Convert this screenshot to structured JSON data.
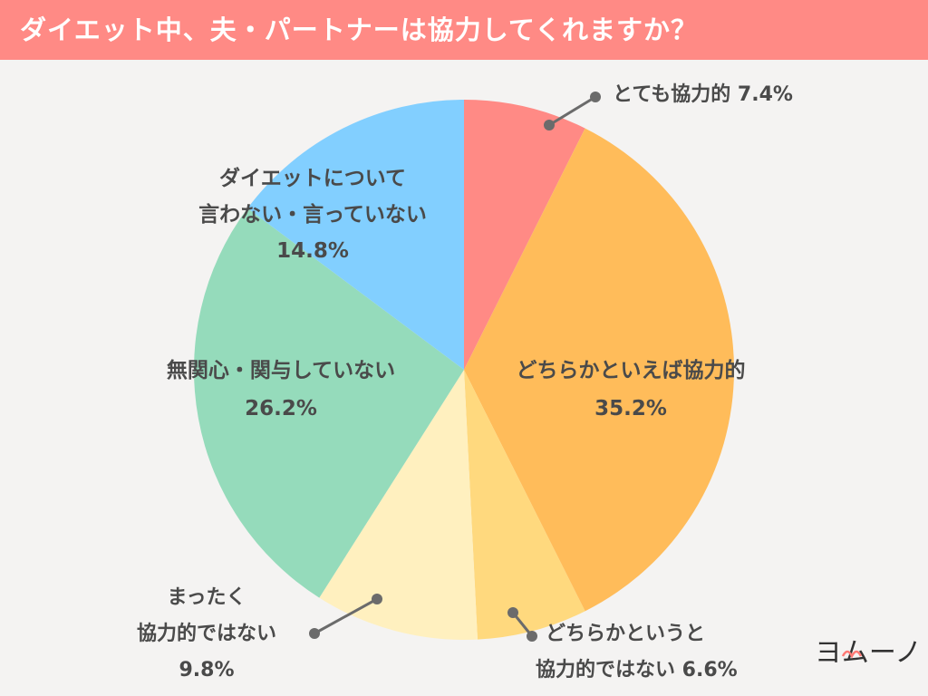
{
  "title": "ダイエット中、夫・パートナーは協力してくれますか？",
  "logo_text": "ヨムーノ",
  "chart_data": {
    "type": "pie",
    "title": "ダイエット中、夫・パートナーは協力してくれますか？",
    "slices": [
      {
        "label": "とても協力的",
        "value": 7.4,
        "display": "7.4%",
        "color": "#ff8a85"
      },
      {
        "label": "どちらかといえば協力的",
        "value": 35.2,
        "display": "35.2%",
        "color": "#ffbc5a"
      },
      {
        "label": "どちらかというと協力的ではない",
        "value": 6.6,
        "display": "6.6%",
        "color": "#ffd97e"
      },
      {
        "label": "まったく協力的ではない",
        "value": 9.8,
        "display": "9.8%",
        "color": "#fff0bf"
      },
      {
        "label": "無関心・関与していない",
        "value": 26.2,
        "display": "26.2%",
        "color": "#95dbbb"
      },
      {
        "label": "ダイエットについて言わない・言っていない",
        "value": 14.8,
        "display": "14.8%",
        "color": "#82cfff"
      }
    ]
  }
}
